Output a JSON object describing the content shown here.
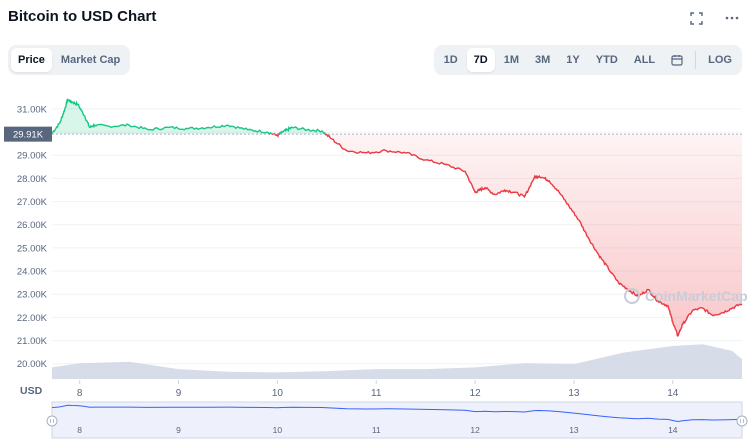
{
  "header": {
    "title": "Bitcoin to USD Chart"
  },
  "top_icons": [
    "fullscreen-icon",
    "more-icon"
  ],
  "tabs": {
    "price": "Price",
    "market_cap": "Market Cap"
  },
  "ranges": {
    "d1": "1D",
    "d7": "7D",
    "m1": "1M",
    "m3": "3M",
    "y1": "1Y",
    "ytd": "YTD",
    "all": "ALL",
    "log": "LOG"
  },
  "colors": {
    "up": "#16c784",
    "down": "#ea3943",
    "volume": "#cfd6e4",
    "navigator_line": "#3861fb"
  },
  "current_price_label": "29.91K",
  "watermark": "CoinMarketCap",
  "chart_data": {
    "type": "line",
    "currency_label": "USD",
    "y_ticks": [
      "31.00K",
      "30.00K",
      "29.00K",
      "28.00K",
      "27.00K",
      "26.00K",
      "25.00K",
      "24.00K",
      "23.00K",
      "22.00K",
      "21.00K",
      "20.00K"
    ],
    "ylim": [
      19600,
      31600
    ],
    "x_ticks": [
      "8",
      "9",
      "10",
      "11",
      "12",
      "13",
      "14"
    ],
    "x_tick_days": [
      8,
      9,
      10,
      11,
      12,
      13,
      14
    ],
    "xlim": [
      7.72,
      14.7
    ],
    "reference_price": 29910,
    "series": [
      {
        "x": [
          7.72,
          7.8,
          7.85,
          7.88,
          7.92,
          7.98,
          8.05,
          8.1,
          8.15,
          8.3,
          8.5,
          8.7,
          8.9,
          9.1,
          9.3,
          9.5,
          9.7,
          9.9,
          10.0,
          10.05,
          10.1,
          10.15,
          10.3,
          10.45,
          10.55,
          10.7,
          10.9,
          11.1,
          11.3,
          11.5,
          11.7,
          11.9,
          12.0,
          12.05,
          12.1,
          12.2,
          12.3,
          12.4,
          12.5,
          12.6,
          12.65,
          12.75,
          12.85,
          12.95,
          13.05,
          13.15,
          13.25,
          13.35,
          13.45,
          13.55,
          13.65,
          13.75,
          13.85,
          13.95,
          14.0,
          14.05,
          14.1,
          14.2,
          14.3,
          14.4,
          14.5,
          14.6,
          14.7
        ],
        "y": [
          29950,
          30400,
          31000,
          31400,
          31300,
          31200,
          30700,
          30200,
          30300,
          30250,
          30300,
          30100,
          30200,
          30150,
          30200,
          30300,
          30100,
          30000,
          29850,
          30000,
          30100,
          30200,
          30100,
          30050,
          29700,
          29200,
          29100,
          29200,
          29100,
          28800,
          28600,
          28300,
          27400,
          27500,
          27600,
          27300,
          27500,
          27400,
          27200,
          28050,
          28100,
          27900,
          27400,
          26800,
          26200,
          25400,
          24700,
          24100,
          23500,
          23200,
          22900,
          23200,
          22700,
          22500,
          21800,
          21200,
          21700,
          22300,
          22400,
          22100,
          22200,
          22400,
          22600
        ]
      }
    ],
    "volume": {
      "x": [
        7.72,
        8.0,
        8.5,
        9.0,
        9.5,
        10.0,
        10.5,
        11.0,
        11.5,
        12.0,
        12.5,
        13.0,
        13.5,
        14.0,
        14.3,
        14.6,
        14.7
      ],
      "v": [
        0.35,
        0.48,
        0.52,
        0.3,
        0.22,
        0.2,
        0.24,
        0.3,
        0.3,
        0.35,
        0.48,
        0.45,
        0.8,
        1.0,
        1.05,
        0.85,
        0.6
      ]
    }
  }
}
